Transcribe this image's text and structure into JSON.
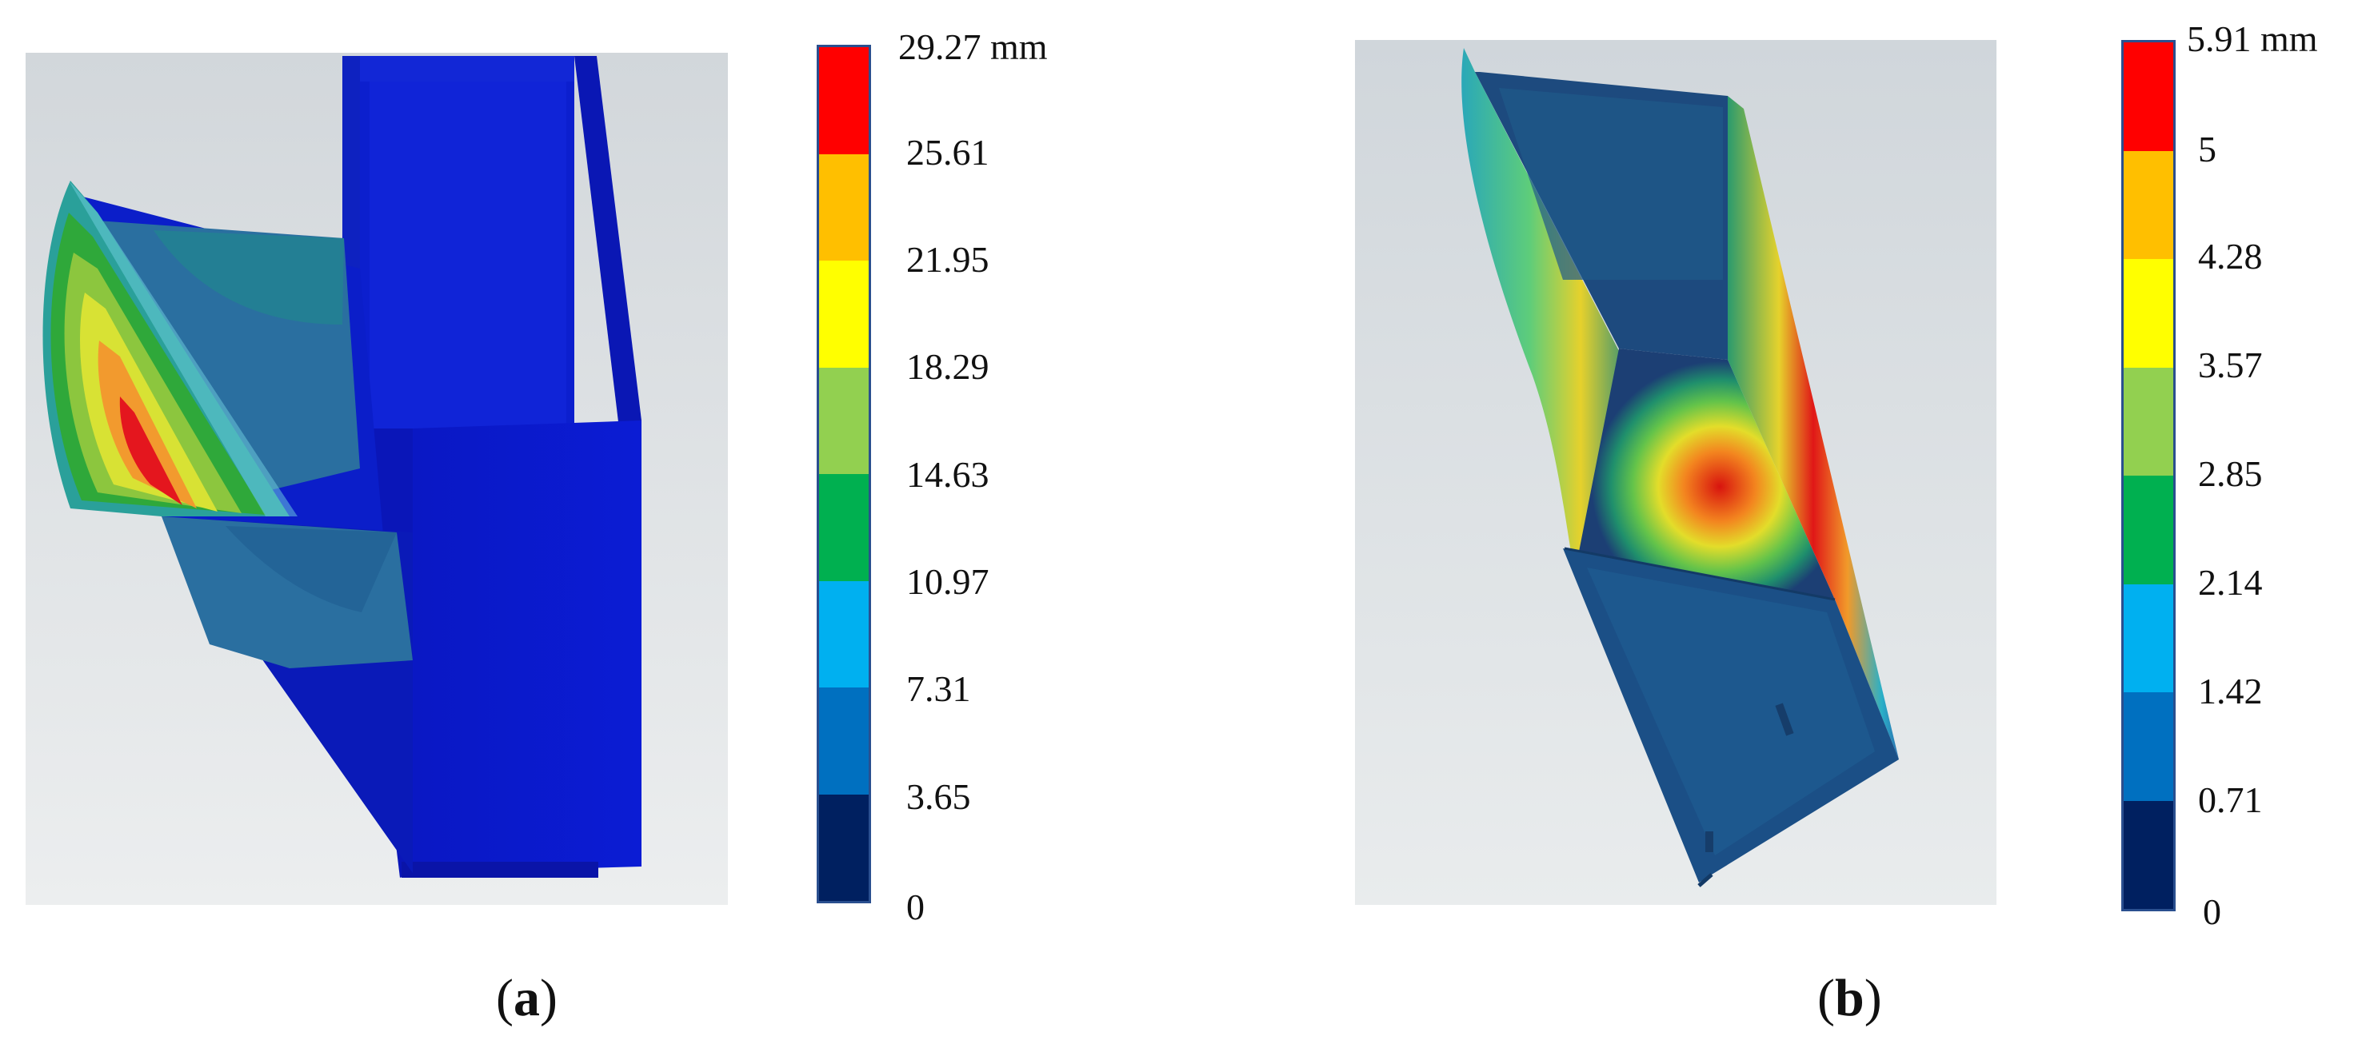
{
  "panels": [
    {
      "id": "a",
      "label_open": "(",
      "label_letter": "a",
      "label_close": ")",
      "legend": {
        "unit_label": "29.27 mm",
        "ticks": [
          "25.61",
          "21.95",
          "18.29",
          "14.63",
          "10.97",
          "7.31",
          "3.65",
          "0"
        ],
        "colors": [
          "#ff0000",
          "#ffbf00",
          "#ffff00",
          "#92d050",
          "#00b050",
          "#00b0f0",
          "#0070c0",
          "#002060"
        ]
      }
    },
    {
      "id": "b",
      "label_open": "(",
      "label_letter": "b",
      "label_close": ")",
      "legend": {
        "unit_label": "5.91 mm",
        "ticks": [
          "5",
          "4.28",
          "3.57",
          "2.85",
          "2.14",
          "1.42",
          "0.71",
          "0"
        ],
        "colors": [
          "#ff0000",
          "#ffbf00",
          "#ffff00",
          "#92d050",
          "#00b050",
          "#00b0f0",
          "#0070c0",
          "#002060"
        ]
      }
    }
  ]
}
